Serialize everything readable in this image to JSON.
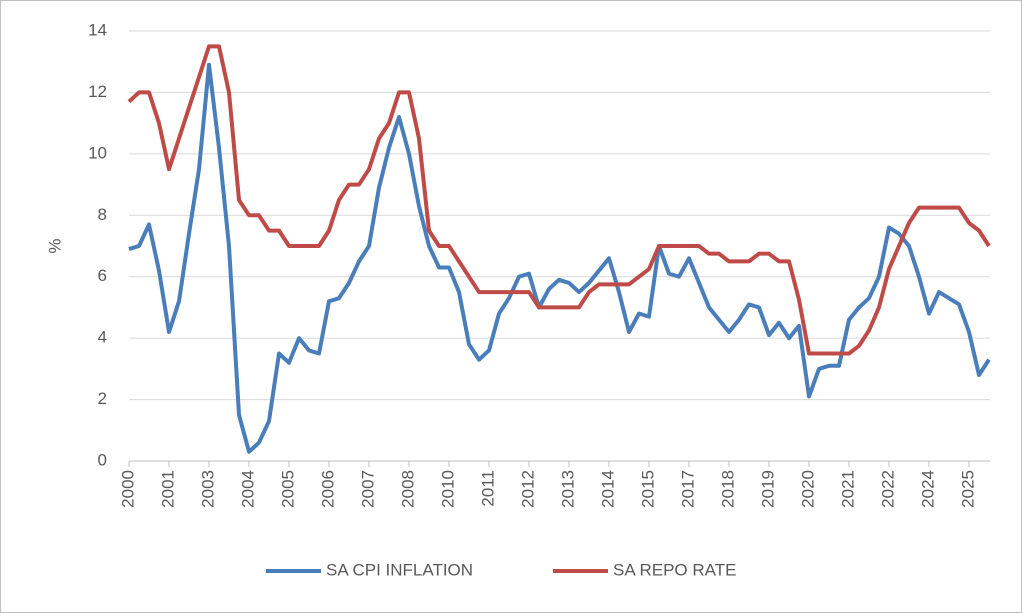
{
  "chart_data": {
    "type": "line",
    "y_label": "%",
    "categories": [
      "2000",
      null,
      null,
      null,
      "2001",
      null,
      null,
      null,
      "2003",
      null,
      null,
      null,
      "2004",
      null,
      null,
      null,
      "2005",
      null,
      null,
      null,
      "2006",
      null,
      null,
      null,
      "2007",
      null,
      null,
      null,
      "2008",
      null,
      null,
      null,
      "2010",
      null,
      null,
      null,
      "2011",
      null,
      null,
      null,
      "2012",
      null,
      null,
      null,
      "2013",
      null,
      null,
      null,
      "2014",
      null,
      null,
      null,
      "2015",
      null,
      null,
      null,
      "2017",
      null,
      null,
      null,
      "2018",
      null,
      null,
      null,
      "2019",
      null,
      null,
      null,
      "2020",
      null,
      null,
      null,
      "2021",
      null,
      null,
      null,
      "2022",
      null,
      null,
      null,
      "2024",
      null,
      null,
      null,
      "2025",
      null,
      null
    ],
    "series": [
      {
        "name": "SA CPI INFLATION",
        "color": "#4a7ebb",
        "values": [
          6.9,
          7,
          7.7,
          6.2,
          4.2,
          5.2,
          7.4,
          9.5,
          12.9,
          10.2,
          7,
          1.5,
          0.3,
          0.6,
          1.3,
          3.5,
          3.2,
          4,
          3.6,
          3.5,
          5.2,
          5.3,
          5.8,
          6.5,
          7,
          8.9,
          10.2,
          11.2,
          10,
          8.3,
          7,
          6.3,
          6.3,
          5.5,
          3.8,
          3.3,
          3.6,
          4.8,
          5.3,
          6,
          6.1,
          5,
          5.6,
          5.9,
          5.8,
          5.5,
          5.8,
          6.2,
          6.6,
          5.5,
          4.2,
          4.8,
          4.7,
          7,
          6.1,
          6,
          6.6,
          5.8,
          5,
          4.6,
          4.2,
          4.6,
          5.1,
          5,
          4.1,
          4.5,
          4,
          4.4,
          2.1,
          3,
          3.1,
          3.1,
          4.6,
          5,
          5.3,
          6,
          7.6,
          7.4,
          7,
          6,
          4.8,
          5.5,
          5.3,
          5.1,
          4.2,
          2.8,
          3.3
        ]
      },
      {
        "name": "SA REPO RATE",
        "color": "#be4b48",
        "values": [
          11.7,
          12,
          12,
          11,
          9.5,
          10.5,
          11.5,
          12.5,
          13.5,
          13.5,
          12,
          8.5,
          8,
          8,
          7.5,
          7.5,
          7,
          7,
          7,
          7,
          7.5,
          8.5,
          9,
          9,
          9.5,
          10.5,
          11,
          12,
          12,
          10.5,
          7.5,
          7,
          7,
          6.5,
          6,
          5.5,
          5.5,
          5.5,
          5.5,
          5.5,
          5.5,
          5,
          5,
          5,
          5,
          5,
          5.5,
          5.75,
          5.75,
          5.75,
          5.75,
          6,
          6.25,
          7,
          7,
          7,
          7,
          7,
          6.75,
          6.75,
          6.5,
          6.5,
          6.5,
          6.75,
          6.75,
          6.5,
          6.5,
          5.25,
          3.5,
          3.5,
          3.5,
          3.5,
          3.5,
          3.75,
          4.25,
          5,
          6.25,
          7,
          7.75,
          8.25,
          8.25,
          8.25,
          8.25,
          8.25,
          7.75,
          7.5,
          7
        ]
      }
    ],
    "ylim": [
      0,
      14
    ],
    "yticks": [
      0,
      2,
      4,
      6,
      8,
      10,
      12,
      14
    ],
    "grid": true,
    "legend": "bottom"
  }
}
